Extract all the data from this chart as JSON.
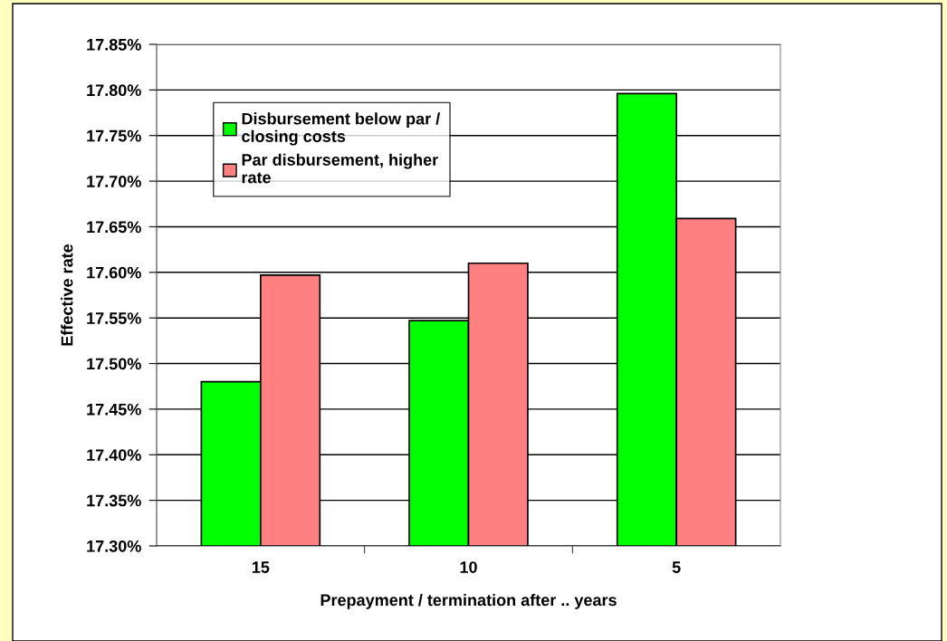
{
  "chart_data": {
    "type": "bar",
    "xlabel": "Prepayment / termination after .. years",
    "ylabel": "Effective rate",
    "categories": [
      "15",
      "10",
      "5"
    ],
    "series": [
      {
        "name": "Disbursement below par /\nclosing costs",
        "color": "#00ff00",
        "values": [
          17.48,
          17.547,
          17.796
        ]
      },
      {
        "name": "Par disbursement, higher\nrate",
        "color": "#ff8080",
        "values": [
          17.597,
          17.61,
          17.659
        ]
      }
    ],
    "ylim": [
      17.3,
      17.85
    ],
    "yticks": [
      {
        "value": 17.3,
        "label": "17.30%"
      },
      {
        "value": 17.35,
        "label": "17.35%"
      },
      {
        "value": 17.4,
        "label": "17.40%"
      },
      {
        "value": 17.45,
        "label": "17.45%"
      },
      {
        "value": 17.5,
        "label": "17.50%"
      },
      {
        "value": 17.55,
        "label": "17.55%"
      },
      {
        "value": 17.6,
        "label": "17.60%"
      },
      {
        "value": 17.65,
        "label": "17.65%"
      },
      {
        "value": 17.7,
        "label": "17.70%"
      },
      {
        "value": 17.75,
        "label": "17.75%"
      },
      {
        "value": 17.8,
        "label": "17.80%"
      },
      {
        "value": 17.85,
        "label": "17.85%"
      }
    ],
    "grid": "y",
    "legend": "top left"
  }
}
